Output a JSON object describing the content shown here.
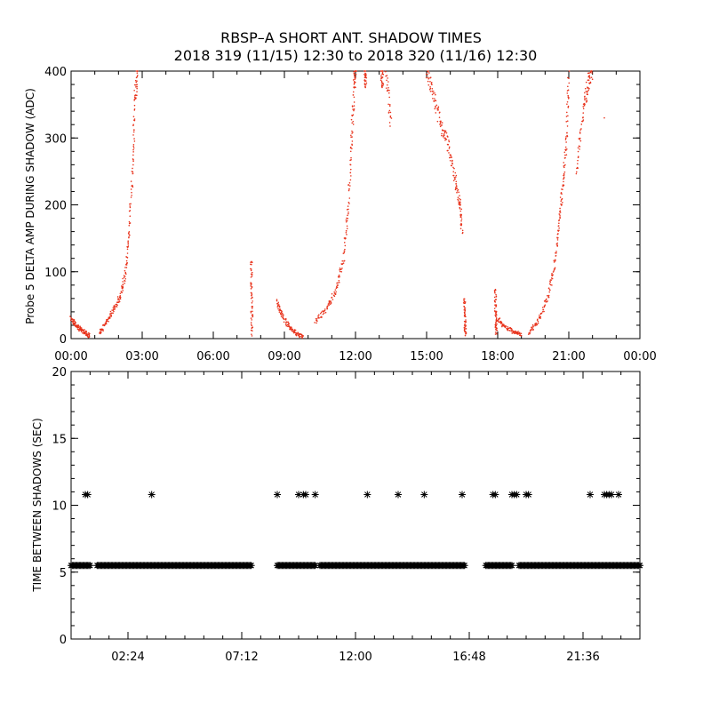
{
  "chart_data": [
    {
      "type": "scatter",
      "title": "RBSP–A SHORT ANT. SHADOW TIMES",
      "subtitle": "2018 319 (11/15) 12:30 to 2018 320 (11/16) 12:30",
      "xlabel": "",
      "ylabel": "Probe 5 DELTA AMP DURING SHADOW (ADC)",
      "xlim": [
        0,
        24
      ],
      "ylim": [
        0,
        400
      ],
      "x_tick_values": [
        0,
        3,
        6,
        9,
        12,
        15,
        18,
        21,
        24
      ],
      "x_tick_labels": [
        "00:00",
        "03:00",
        "06:00",
        "09:00",
        "12:00",
        "15:00",
        "18:00",
        "21:00",
        "00:00"
      ],
      "y_tick_values": [
        0,
        100,
        200,
        300,
        400
      ],
      "y_tick_labels": [
        "0",
        "100",
        "200",
        "300",
        "400"
      ],
      "color": "#e8331c",
      "series": [
        {
          "segments": [
            [
              [
                0.0,
                30
              ],
              [
                0.2,
                20
              ],
              [
                0.4,
                14
              ],
              [
                0.6,
                8
              ],
              [
                0.8,
                4
              ]
            ],
            [
              [
                1.2,
                8
              ],
              [
                1.5,
                25
              ],
              [
                1.8,
                45
              ],
              [
                2.1,
                65
              ],
              [
                2.3,
                100
              ],
              [
                2.45,
                160
              ],
              [
                2.6,
                260
              ],
              [
                2.7,
                360
              ],
              [
                2.8,
                400
              ]
            ],
            [
              [
                7.6,
                120
              ],
              [
                7.62,
                60
              ],
              [
                7.64,
                5
              ]
            ],
            [
              [
                8.7,
                55
              ],
              [
                8.9,
                35
              ],
              [
                9.2,
                18
              ],
              [
                9.5,
                8
              ],
              [
                9.8,
                2
              ]
            ],
            [
              [
                10.3,
                25
              ],
              [
                10.8,
                45
              ],
              [
                11.2,
                75
              ],
              [
                11.5,
                120
              ],
              [
                11.7,
                200
              ],
              [
                11.85,
                300
              ],
              [
                11.95,
                380
              ],
              [
                12.0,
                405
              ]
            ],
            [
              [
                12.4,
                400
              ],
              [
                12.45,
                380
              ]
            ],
            [
              [
                13.1,
                400
              ],
              [
                13.15,
                380
              ]
            ],
            [
              [
                13.3,
                395
              ],
              [
                13.5,
                320
              ]
            ],
            [
              [
                15.0,
                400
              ],
              [
                15.3,
                360
              ],
              [
                15.6,
                320
              ],
              [
                15.9,
                290
              ],
              [
                16.2,
                240
              ],
              [
                16.4,
                200
              ],
              [
                16.5,
                160
              ]
            ],
            [
              [
                16.6,
                60
              ],
              [
                16.62,
                25
              ],
              [
                16.64,
                5
              ]
            ],
            [
              [
                17.9,
                75
              ],
              [
                17.92,
                35
              ],
              [
                17.94,
                5
              ]
            ],
            [
              [
                18.0,
                30
              ],
              [
                18.3,
                18
              ],
              [
                18.7,
                10
              ],
              [
                19.0,
                6
              ]
            ],
            [
              [
                19.3,
                8
              ],
              [
                19.7,
                25
              ],
              [
                20.1,
                60
              ],
              [
                20.4,
                110
              ],
              [
                20.6,
                170
              ],
              [
                20.75,
                230
              ],
              [
                20.9,
                300
              ],
              [
                21.0,
                400
              ]
            ],
            [
              [
                21.3,
                250
              ],
              [
                21.6,
                340
              ],
              [
                21.8,
                380
              ],
              [
                22.0,
                400
              ]
            ],
            [
              [
                22.5,
                330
              ]
            ]
          ]
        }
      ]
    },
    {
      "type": "scatter",
      "xlabel": "",
      "ylabel": "TIME BETWEEN SHADOWS (SEC)",
      "xlim": [
        0,
        24
      ],
      "ylim": [
        0,
        20
      ],
      "x_tick_values": [
        2.4,
        7.2,
        12.0,
        16.8,
        21.6
      ],
      "x_tick_labels": [
        "02:24",
        "07:12",
        "12:00",
        "16:48",
        "21:36"
      ],
      "y_tick_values": [
        0,
        5,
        10,
        15,
        20
      ],
      "y_tick_labels": [
        "0",
        "5",
        "10",
        "15",
        "20"
      ],
      "marker": "asterisk",
      "series": [
        {
          "baseline_value": 5.5,
          "baseline_ranges": [
            [
              0.0,
              0.8
            ],
            [
              1.1,
              7.6
            ],
            [
              8.7,
              10.3
            ],
            [
              10.5,
              16.6
            ],
            [
              17.5,
              18.6
            ],
            [
              18.9,
              24.0
            ]
          ],
          "points": [
            [
              0.6,
              10.8
            ],
            [
              0.7,
              10.8
            ],
            [
              3.4,
              10.8
            ],
            [
              8.7,
              10.8
            ],
            [
              9.6,
              10.8
            ],
            [
              9.8,
              10.8
            ],
            [
              9.9,
              10.8
            ],
            [
              10.3,
              10.8
            ],
            [
              12.5,
              10.8
            ],
            [
              13.8,
              10.8
            ],
            [
              14.9,
              10.8
            ],
            [
              16.5,
              10.8
            ],
            [
              17.8,
              10.8
            ],
            [
              17.9,
              10.8
            ],
            [
              18.6,
              10.8
            ],
            [
              18.7,
              10.8
            ],
            [
              18.8,
              10.8
            ],
            [
              19.2,
              10.8
            ],
            [
              19.3,
              10.8
            ],
            [
              21.9,
              10.8
            ],
            [
              22.5,
              10.8
            ],
            [
              22.6,
              10.8
            ],
            [
              22.7,
              10.8
            ],
            [
              22.8,
              10.8
            ],
            [
              23.1,
              10.8
            ]
          ]
        }
      ]
    }
  ]
}
